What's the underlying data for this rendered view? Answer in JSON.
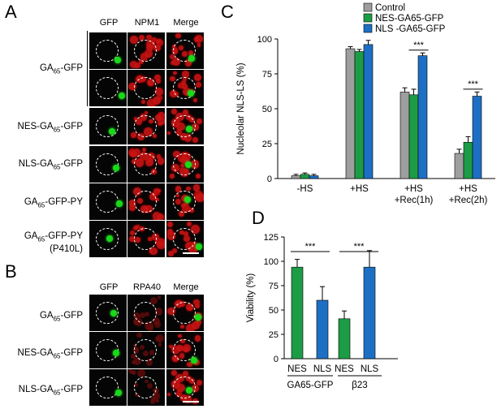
{
  "panels": {
    "A": {
      "letter": "A",
      "columns": [
        "GFP",
        "NPM1",
        "Merge"
      ],
      "rows": [
        "GA65-GFP",
        "",
        "NES-GA65-GFP",
        "NLS-GA65-GFP",
        "GA65-GFP-PY",
        "GA65-GFP-PY (P410L)"
      ]
    },
    "B": {
      "letter": "B",
      "columns": [
        "GFP",
        "RPA40",
        "Merge"
      ],
      "rows": [
        "GA65-GFP",
        "NES-GA65-GFP",
        "NLS-GA65-GFP"
      ]
    },
    "C": {
      "letter": "C"
    },
    "D": {
      "letter": "D"
    }
  },
  "colors": {
    "control": "#9e9e9e",
    "nes": "#1c9c46",
    "nls": "#1d6fc4",
    "gfp": "#19d919",
    "npm1": "#c81414"
  },
  "chart_data": [
    {
      "panel": "C",
      "type": "bar",
      "ylabel": "Nucleolar NLS-LS (%)",
      "ylim": [
        0,
        100
      ],
      "yticks": [
        0,
        25,
        50,
        75,
        100
      ],
      "categories": [
        "-HS",
        "+HS",
        "+HS\n+Rec(1h)",
        "+HS\n+Rec(2h)"
      ],
      "series": [
        {
          "name": "Control",
          "values": [
            2,
            93,
            62,
            18
          ],
          "errors": [
            1,
            1.5,
            3,
            3
          ]
        },
        {
          "name": "NES-GA65-GFP",
          "values": [
            3,
            91,
            60,
            26
          ],
          "errors": [
            1,
            1.5,
            4,
            4
          ]
        },
        {
          "name": "NLS -GA65-GFP",
          "values": [
            2,
            96,
            88,
            59
          ],
          "errors": [
            1,
            3,
            2,
            3
          ]
        }
      ],
      "legend": "top-right",
      "annotations": [
        "***",
        "***"
      ]
    },
    {
      "panel": "D",
      "type": "bar",
      "ylabel": "Viability (%)",
      "ylim": [
        0,
        125
      ],
      "yticks": [
        0,
        25,
        50,
        75,
        100,
        125
      ],
      "categories": [
        "NES",
        "NLS",
        "NES",
        "NLS"
      ],
      "groups": [
        "GA65-GFP",
        "β23"
      ],
      "values": [
        94,
        60,
        41,
        94
      ],
      "errors": [
        8,
        14,
        8,
        17
      ],
      "bar_colors": [
        "nes",
        "nls",
        "nes",
        "nls"
      ],
      "annotations": [
        "***",
        "***"
      ]
    }
  ]
}
